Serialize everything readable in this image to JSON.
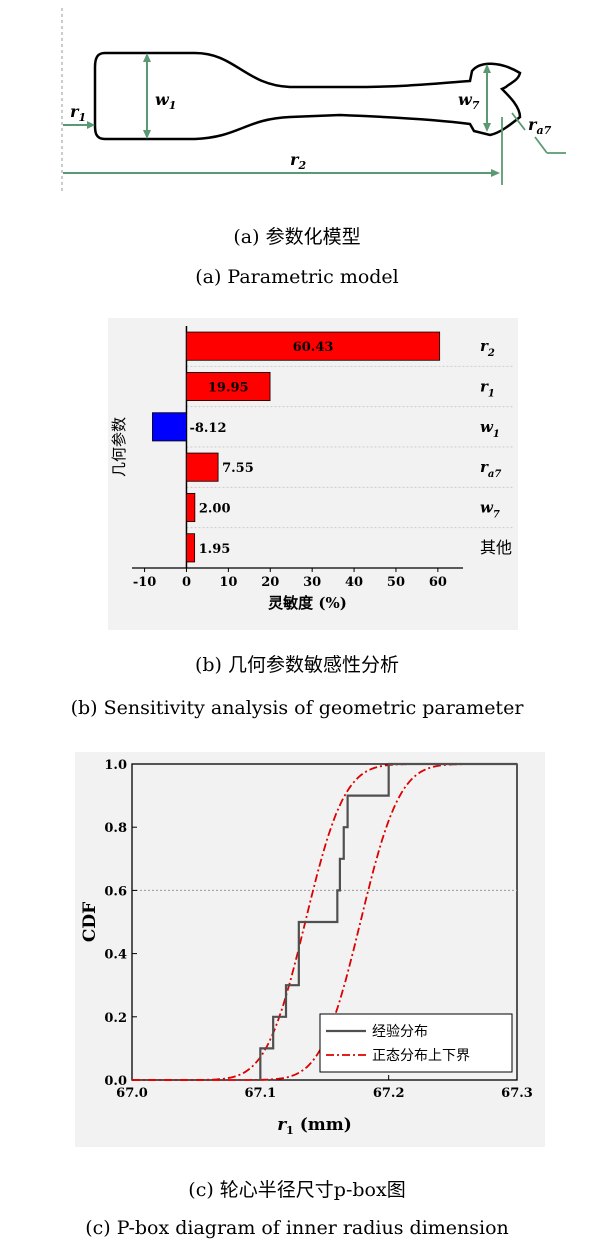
{
  "figure_a": {
    "labels": {
      "r1_main": "r",
      "r1_sub": "1",
      "w1_main": "w",
      "w1_sub": "1",
      "w7_main": "w",
      "w7_sub": "7",
      "ra7_main": "r",
      "ra7_sub": "a7",
      "r2_main": "r",
      "r2_sub": "2"
    },
    "caption_cn": "(a)  参数化模型",
    "caption_en": "(a) Parametric model"
  },
  "figure_b": {
    "caption_cn": "(b)  几何参数敏感性分析",
    "caption_en": "(b) Sensitivity analysis of geometric parameter"
  },
  "figure_c": {
    "caption_cn": "(c)  轮心半径尺寸p-box图",
    "caption_en": "(c) P-box diagram of inner radius dimension"
  },
  "chart_data": [
    {
      "type": "bar",
      "orientation": "horizontal",
      "categories": [
        {
          "main": "r",
          "sub": "2"
        },
        {
          "main": "r",
          "sub": "1"
        },
        {
          "main": "w",
          "sub": "1"
        },
        {
          "main": "r",
          "sub": "a7"
        },
        {
          "main": "w",
          "sub": "7"
        },
        {
          "main": "其他",
          "sub": ""
        }
      ],
      "values": [
        60.43,
        19.95,
        -8.12,
        7.55,
        2.0,
        1.95
      ],
      "value_labels": [
        "60.43",
        "19.95",
        "-8.12",
        "7.55",
        "2.00",
        "1.95"
      ],
      "xlabel": "灵敏度 (%)",
      "ylabel": "几何参数",
      "xlim": [
        -13,
        66
      ],
      "xticks": [
        -10,
        0,
        10,
        20,
        30,
        40,
        50,
        60
      ],
      "colors": {
        "positive": "#ff0000",
        "negative": "#0000ff"
      }
    },
    {
      "type": "line",
      "xlabel_main": "r",
      "xlabel_sub": "1",
      "xlabel_unit": " (mm)",
      "ylabel": "CDF",
      "xlim": [
        67.0,
        67.3
      ],
      "ylim": [
        0.0,
        1.0
      ],
      "xticks": [
        "67.0",
        "67.1",
        "67.2",
        "67.3"
      ],
      "yticks": [
        "0.0",
        "0.2",
        "0.4",
        "0.6",
        "0.8",
        "1.0"
      ],
      "grid_y": [
        0.6
      ],
      "legend_position": "bottom-right",
      "series": [
        {
          "name": "经验分布",
          "style": "solid",
          "color": "#505050",
          "step_x": [
            67.1,
            67.11,
            67.12,
            67.13,
            67.14,
            67.16,
            67.162,
            67.165,
            67.168,
            67.172,
            67.2
          ],
          "step_y": [
            0.1,
            0.2,
            0.3,
            0.5,
            0.5,
            0.6,
            0.7,
            0.8,
            0.9,
            0.9,
            1.0
          ]
        },
        {
          "name": "正态分布上下界",
          "style": "dash-dot",
          "color": "#dd0000",
          "bounds": [
            {
              "mean": 67.135,
              "std": 0.024
            },
            {
              "mean": 67.178,
              "std": 0.024
            }
          ]
        }
      ]
    }
  ]
}
